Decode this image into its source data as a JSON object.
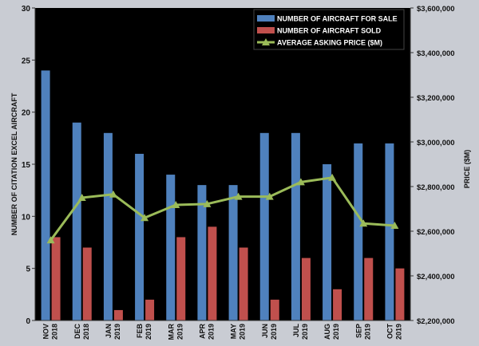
{
  "chart_data": {
    "type": "bar+line",
    "categories": [
      [
        "NOV",
        "2018"
      ],
      [
        "DEC",
        "2018"
      ],
      [
        "JAN",
        "2019"
      ],
      [
        "FEB",
        "2019"
      ],
      [
        "MAR",
        "2019"
      ],
      [
        "APR",
        "2019"
      ],
      [
        "MAY",
        "2019"
      ],
      [
        "JUN",
        "2019"
      ],
      [
        "JUL",
        "2019"
      ],
      [
        "AUG",
        "2019"
      ],
      [
        "SEP",
        "2019"
      ],
      [
        "OCT",
        "2019"
      ]
    ],
    "series": [
      {
        "name": "NUMBER OF AIRCRAFT FOR SALE",
        "kind": "bar",
        "axis": "left",
        "color": "#4f81bd",
        "values": [
          24,
          19,
          18,
          16,
          14,
          13,
          13,
          18,
          18,
          15,
          17,
          17
        ]
      },
      {
        "name": "NUMBER OF AIRCRAFT SOLD",
        "kind": "bar",
        "axis": "left",
        "color": "#c0504d",
        "values": [
          8,
          7,
          1,
          2,
          8,
          9,
          7,
          2,
          6,
          3,
          6,
          5
        ]
      },
      {
        "name": "AVERAGE ASKING PRICE ($M)",
        "kind": "line",
        "axis": "right",
        "color": "#9bbb59",
        "values": [
          2560000,
          2750000,
          2765000,
          2660000,
          2718000,
          2722000,
          2755000,
          2755000,
          2820000,
          2840000,
          2635000,
          2625000
        ]
      }
    ],
    "y_left": {
      "label": "NUMBER OF CITATION EXCEL AIRCRAFT",
      "min": 0,
      "max": 30,
      "ticks": [
        "0",
        "5",
        "10",
        "15",
        "20",
        "25",
        "30"
      ]
    },
    "y_right": {
      "label": "PRICE ($M)",
      "min": 2200000,
      "max": 3600000,
      "ticks": [
        "$2,200,000",
        "$2,400,000",
        "$2,600,000",
        "$2,800,000",
        "$3,000,000",
        "$3,200,000",
        "$3,400,000",
        "$3,600,000"
      ]
    },
    "legend_position": "top-right",
    "plot_background": "#000000",
    "grid": false
  }
}
